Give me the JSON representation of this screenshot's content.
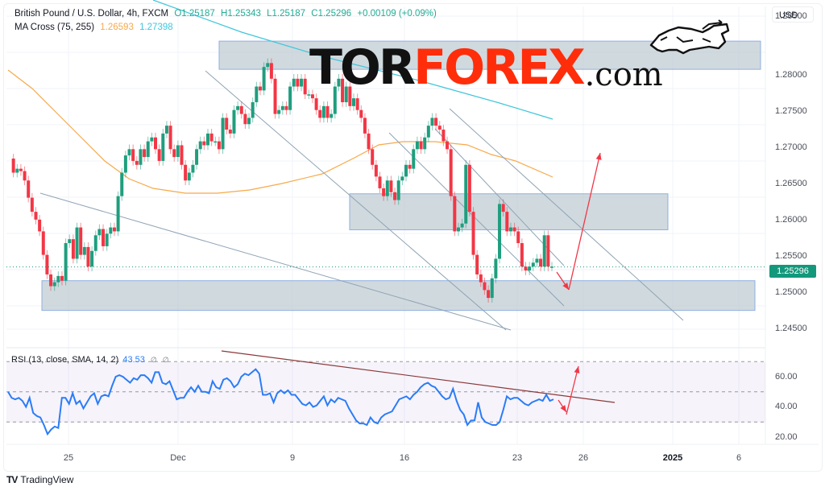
{
  "header": {
    "symbol": "British Pound / U.S. Dollar, 4h, FXCM",
    "ohlc": {
      "open": "O1.25187",
      "high": "H1.25343",
      "low": "L1.25187",
      "close": "C1.25296",
      "change": "+0.00109 (+0.09%)"
    },
    "ma_indicator": {
      "label": "MA Cross (75, 255)",
      "fast": "1.26593",
      "slow": "1.27398"
    },
    "currency_button": "USD"
  },
  "brand": {
    "part1": "TOR",
    "part2": "FOREX",
    "part3": ".com",
    "icon": "bull-icon"
  },
  "rsi_indicator": {
    "label": "RSI (13, close, SMA, 14, 2)",
    "value": "43.53",
    "na1": "∅",
    "na2": "∅"
  },
  "current_price_tag": "1.25296",
  "footer": {
    "brand": "TradingView"
  },
  "colors": {
    "up": "#1f9e7e",
    "down": "#f23645",
    "ma_fast": "#f7a94a",
    "ma_slow": "#3fc6db",
    "rsi": "#2a7cf6",
    "zone": "#b7c4cc",
    "arrow": "#f23645",
    "trend_rsi": "#8b3a3a"
  },
  "chart_data": [
    {
      "type": "candlestick",
      "title": "British Pound / U.S. Dollar, 4h, FXCM",
      "ylabel": "USD",
      "ylim": [
        1.2425,
        1.2875
      ],
      "yticks": [
        "1.28500",
        "1.28000",
        "1.27500",
        "1.27000",
        "1.26500",
        "1.26000",
        "1.25500",
        "1.25000",
        "1.24500"
      ],
      "xticks": [
        "25",
        "Dec",
        "9",
        "16",
        "23",
        "26",
        "2025",
        "6"
      ],
      "last_close": 1.25296,
      "series": [
        {
          "name": "MA 75",
          "value": 1.26593
        },
        {
          "name": "MA 255",
          "value": 1.27398
        }
      ],
      "zones": [
        {
          "name": "resistance",
          "from": 1.2782,
          "to": 1.2818
        },
        {
          "name": "mid resistance",
          "from": 1.2577,
          "to": 1.2623
        },
        {
          "name": "support",
          "from": 1.2474,
          "to": 1.2512
        }
      ],
      "annotations": [
        "down arrow to ~1.2505 then up arrow to ~1.2695"
      ],
      "grid": true
    },
    {
      "type": "line",
      "title": "RSI (13, close, SMA, 14, 2)",
      "ylim": [
        15,
        75
      ],
      "yticks": [
        "60.00",
        "40.00",
        "20.00"
      ],
      "bands": [
        30,
        50,
        70
      ],
      "last_value": 43.53,
      "values": [
        50,
        46,
        45,
        46,
        44,
        40,
        46,
        36,
        34,
        33,
        28,
        22,
        25,
        27,
        26,
        46,
        46,
        42,
        49,
        42,
        44,
        39,
        43,
        47,
        49,
        42,
        47,
        48,
        47,
        54,
        60,
        61,
        60,
        58,
        56,
        59,
        58,
        61,
        61,
        59,
        56,
        63,
        63,
        56,
        55,
        57,
        51,
        45,
        46,
        46,
        50,
        53,
        50,
        54,
        50,
        50,
        49,
        57,
        53,
        52,
        58,
        59,
        57,
        53,
        55,
        60,
        62,
        61,
        63,
        65,
        62,
        48,
        48,
        49,
        43,
        49,
        51,
        49,
        51,
        48,
        48,
        45,
        42,
        41,
        43,
        40,
        41,
        44,
        47,
        41,
        45,
        43,
        46,
        45,
        44,
        39,
        35,
        31,
        29,
        29,
        28,
        33,
        30,
        29,
        33,
        35,
        36,
        37,
        41,
        45,
        46,
        47,
        45,
        48,
        50,
        53,
        55,
        56,
        54,
        53,
        50,
        47,
        45,
        46,
        52,
        44,
        38,
        35,
        28,
        31,
        31,
        43,
        33,
        30,
        29,
        28,
        28,
        30,
        38,
        47,
        45,
        46,
        46,
        44,
        42,
        41,
        43,
        44,
        45,
        44,
        48,
        44,
        45
      ],
      "annotations": [
        "descending trendline from ~72 to ~44",
        "down arrow then up arrow"
      ]
    }
  ]
}
